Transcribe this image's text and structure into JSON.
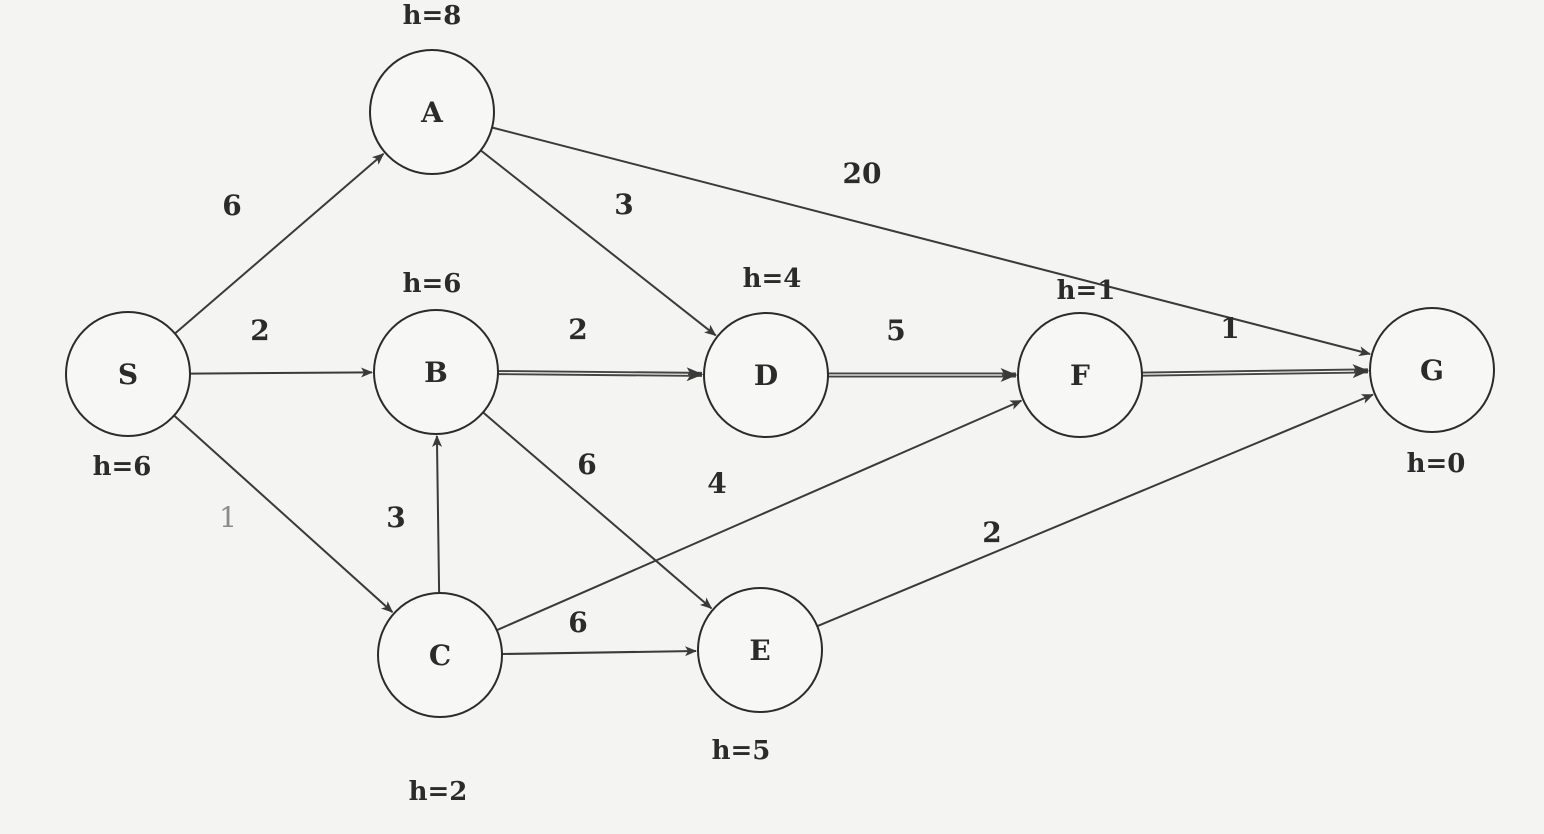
{
  "nodes": [
    {
      "id": "S",
      "label": "S",
      "heuristic": "h=6"
    },
    {
      "id": "A",
      "label": "A",
      "heuristic": "h=8"
    },
    {
      "id": "B",
      "label": "B",
      "heuristic": "h=6"
    },
    {
      "id": "C",
      "label": "C",
      "heuristic": "h=2"
    },
    {
      "id": "D",
      "label": "D",
      "heuristic": "h=4"
    },
    {
      "id": "E",
      "label": "E",
      "heuristic": "h=5"
    },
    {
      "id": "F",
      "label": "F",
      "heuristic": "h=1"
    },
    {
      "id": "G",
      "label": "G",
      "heuristic": "h=0"
    }
  ],
  "edges": [
    {
      "from": "S",
      "to": "A",
      "weight": "6"
    },
    {
      "from": "S",
      "to": "B",
      "weight": "2"
    },
    {
      "from": "S",
      "to": "C",
      "weight": "1"
    },
    {
      "from": "A",
      "to": "D",
      "weight": "3"
    },
    {
      "from": "A",
      "to": "G",
      "weight": "20"
    },
    {
      "from": "B",
      "to": "D",
      "weight": "2",
      "highlighted": true
    },
    {
      "from": "B",
      "to": "E",
      "weight": "6"
    },
    {
      "from": "C",
      "to": "B",
      "weight": "3"
    },
    {
      "from": "C",
      "to": "E",
      "weight": "6"
    },
    {
      "from": "C",
      "to": "F",
      "weight": "4"
    },
    {
      "from": "D",
      "to": "F",
      "weight": "5",
      "highlighted": true
    },
    {
      "from": "E",
      "to": "G",
      "weight": "2"
    },
    {
      "from": "F",
      "to": "G",
      "weight": "1",
      "highlighted": true
    }
  ],
  "colors": {
    "ink": "#2b2b2b",
    "paper": "#f4f4f2"
  }
}
